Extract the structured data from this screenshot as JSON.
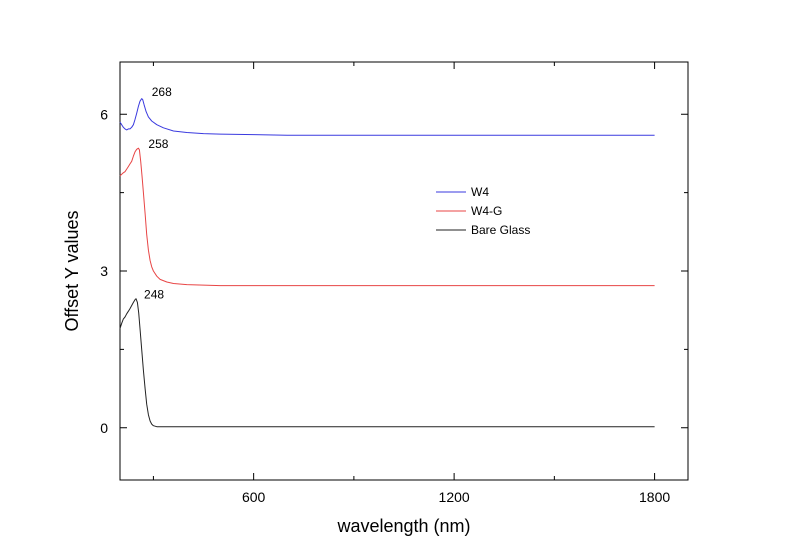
{
  "chart_data": {
    "type": "line",
    "title": "",
    "xlabel": "wavelength (nm)",
    "ylabel": "Offset Y values",
    "xlim": [
      200,
      1900
    ],
    "ylim": [
      -1.0,
      7.0
    ],
    "x_ticks": [
      600,
      1200,
      1800
    ],
    "x_tick_labels": [
      "600",
      "1200",
      "1800"
    ],
    "x_minor_ticks": [
      300,
      900,
      1500
    ],
    "y_ticks": [
      0,
      3,
      6
    ],
    "y_tick_labels": [
      "0",
      "3",
      "6"
    ],
    "grid": false,
    "legend_position": "center-right",
    "series": [
      {
        "name": "W4",
        "color": "#3a3adf",
        "x": [
          200,
          205,
          210,
          215,
          220,
          225,
          230,
          235,
          240,
          245,
          250,
          255,
          260,
          265,
          268,
          272,
          278,
          285,
          295,
          310,
          330,
          360,
          400,
          450,
          500,
          600,
          700,
          900,
          1200,
          1500,
          1800
        ],
        "y": [
          5.85,
          5.8,
          5.75,
          5.72,
          5.7,
          5.72,
          5.72,
          5.75,
          5.8,
          5.9,
          6.02,
          6.15,
          6.25,
          6.3,
          6.28,
          6.18,
          6.05,
          5.95,
          5.87,
          5.8,
          5.74,
          5.68,
          5.65,
          5.63,
          5.62,
          5.61,
          5.6,
          5.6,
          5.6,
          5.6,
          5.6
        ]
      },
      {
        "name": "W4-G",
        "color": "#e84545",
        "x": [
          200,
          205,
          210,
          215,
          220,
          225,
          230,
          235,
          240,
          245,
          250,
          255,
          258,
          262,
          266,
          270,
          275,
          280,
          285,
          290,
          295,
          300,
          310,
          320,
          340,
          360,
          400,
          450,
          500,
          600,
          700,
          900,
          1200,
          1500,
          1800
        ],
        "y": [
          4.82,
          4.85,
          4.88,
          4.9,
          4.95,
          5.0,
          5.05,
          5.1,
          5.2,
          5.28,
          5.33,
          5.35,
          5.32,
          5.1,
          4.8,
          4.5,
          4.1,
          3.7,
          3.4,
          3.2,
          3.08,
          3.0,
          2.9,
          2.84,
          2.79,
          2.76,
          2.74,
          2.73,
          2.72,
          2.72,
          2.72,
          2.72,
          2.72,
          2.72,
          2.72
        ]
      },
      {
        "name": "Bare Glass",
        "color": "#222222",
        "x": [
          200,
          205,
          210,
          215,
          220,
          225,
          230,
          235,
          240,
          245,
          248,
          252,
          256,
          260,
          265,
          270,
          275,
          280,
          285,
          290,
          295,
          300,
          310,
          320,
          340,
          360,
          400,
          500,
          600,
          900,
          1200,
          1500,
          1800
        ],
        "y": [
          1.9,
          2.0,
          2.08,
          2.12,
          2.18,
          2.23,
          2.28,
          2.34,
          2.4,
          2.45,
          2.47,
          2.4,
          2.2,
          1.9,
          1.5,
          1.1,
          0.75,
          0.45,
          0.25,
          0.13,
          0.07,
          0.04,
          0.02,
          0.02,
          0.02,
          0.02,
          0.02,
          0.02,
          0.02,
          0.02,
          0.02,
          0.02,
          0.02
        ]
      }
    ],
    "annotations": [
      {
        "text": "268",
        "x": 295,
        "y": 6.35
      },
      {
        "text": "258",
        "x": 285,
        "y": 5.35
      },
      {
        "text": "248",
        "x": 272,
        "y": 2.47
      }
    ]
  }
}
